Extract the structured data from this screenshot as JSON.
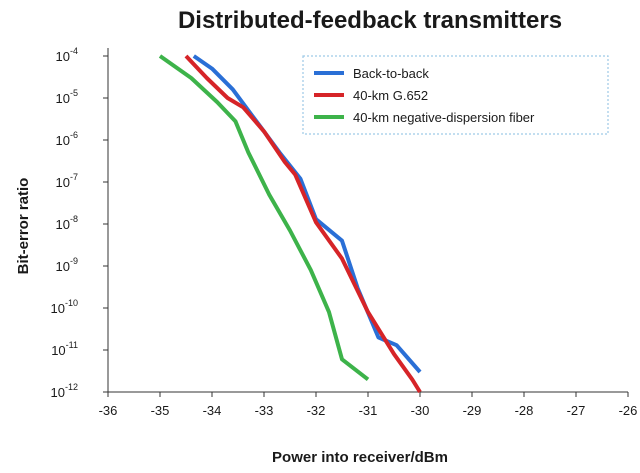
{
  "chart_data": {
    "type": "line",
    "title": "Distributed-feedback transmitters",
    "xlabel": "Power into receiver/dBm",
    "ylabel": "Bit-error ratio",
    "yscale": "log",
    "xlim": [
      -36,
      -26
    ],
    "ylim": [
      1e-12,
      0.0001
    ],
    "x_ticks": [
      "-36",
      "-35",
      "-34",
      "-33",
      "-32",
      "-31",
      "-30",
      "-29",
      "-28",
      "-27",
      "-26"
    ],
    "y_ticks": [
      {
        "base": "10",
        "exp": "-4"
      },
      {
        "base": "10",
        "exp": "-5"
      },
      {
        "base": "10",
        "exp": "-6"
      },
      {
        "base": "10",
        "exp": "-7"
      },
      {
        "base": "10",
        "exp": "-8"
      },
      {
        "base": "10",
        "exp": "-9"
      },
      {
        "base": "10",
        "exp": "-10"
      },
      {
        "base": "10",
        "exp": "-11"
      },
      {
        "base": "10",
        "exp": "-12"
      }
    ],
    "grid": false,
    "legend_position": "top-right",
    "series": [
      {
        "name": "Back-to-back",
        "color": "#2a6fd6",
        "points": [
          [
            -34.35,
            0.0001
          ],
          [
            -34.0,
            5e-05
          ],
          [
            -33.6,
            1.6e-05
          ],
          [
            -33.3,
            5e-06
          ],
          [
            -33.0,
            1.6e-06
          ],
          [
            -32.7,
            5e-07
          ],
          [
            -32.3,
            1.2e-07
          ],
          [
            -32.0,
            1.3e-08
          ],
          [
            -31.5,
            4e-09
          ],
          [
            -31.2,
            3e-10
          ],
          [
            -30.8,
            2e-11
          ],
          [
            -30.45,
            1.3e-11
          ],
          [
            -30.0,
            3e-12
          ]
        ]
      },
      {
        "name": "40-km G.652",
        "color": "#d62428",
        "points": [
          [
            -34.5,
            0.0001
          ],
          [
            -34.1,
            3e-05
          ],
          [
            -33.7,
            1e-05
          ],
          [
            -33.4,
            6e-06
          ],
          [
            -33.0,
            1.6e-06
          ],
          [
            -32.6,
            3e-07
          ],
          [
            -32.4,
            1.5e-07
          ],
          [
            -32.0,
            1.1e-08
          ],
          [
            -31.5,
            1.5e-09
          ],
          [
            -31.0,
            8e-11
          ],
          [
            -30.5,
            8e-12
          ],
          [
            -30.15,
            2e-12
          ],
          [
            -30.0,
            1e-12
          ]
        ]
      },
      {
        "name": "40-km negative-dispersion fiber",
        "color": "#3db34a",
        "points": [
          [
            -35.0,
            0.0001
          ],
          [
            -34.4,
            3e-05
          ],
          [
            -33.9,
            8e-06
          ],
          [
            -33.55,
            2.8e-06
          ],
          [
            -33.3,
            5e-07
          ],
          [
            -32.9,
            5e-08
          ],
          [
            -32.5,
            7e-09
          ],
          [
            -32.1,
            8e-10
          ],
          [
            -31.75,
            8e-11
          ],
          [
            -31.5,
            6e-12
          ],
          [
            -31.0,
            2e-12
          ]
        ]
      }
    ]
  }
}
